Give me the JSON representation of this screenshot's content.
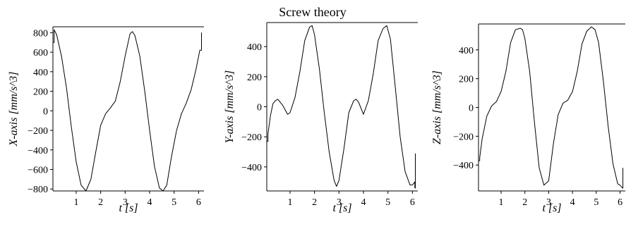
{
  "figure_title": "Screw theory",
  "chart_data": [
    {
      "type": "line",
      "xlabel": "t [s]",
      "ylabel": "X-axis [mm/s^3]",
      "xlim": [
        0.05,
        6.22
      ],
      "ylim": [
        -820,
        860
      ],
      "xticks": [
        1,
        2,
        3,
        4,
        5,
        6
      ],
      "yticks": [
        -800,
        -600,
        -400,
        -200,
        0,
        200,
        400,
        600,
        800
      ],
      "series": [
        {
          "x": [
            0.05,
            0.1,
            0.1,
            0.2,
            0.4,
            0.6,
            0.8,
            1.0,
            1.2,
            1.4,
            1.6,
            1.8,
            2.0,
            2.2,
            2.4,
            2.6,
            2.8,
            3.0,
            3.2,
            3.3,
            3.4,
            3.6,
            3.8,
            4.0,
            4.2,
            4.4,
            4.55,
            4.7,
            4.9,
            5.1,
            5.3,
            5.5,
            5.7,
            5.9,
            6.05,
            6.12,
            6.12
          ],
          "y": [
            700,
            700,
            830,
            780,
            560,
            240,
            -160,
            -520,
            -760,
            -820,
            -700,
            -420,
            -150,
            -30,
            30,
            100,
            300,
            560,
            790,
            810,
            770,
            560,
            200,
            -200,
            -570,
            -790,
            -820,
            -760,
            -460,
            -200,
            -30,
            80,
            220,
            430,
            620,
            620,
            800
          ]
        }
      ]
    },
    {
      "type": "line",
      "xlabel": "t [s]",
      "ylabel": "Y-axis [mm/s^3]",
      "xlim": [
        0.05,
        6.22
      ],
      "ylim": [
        -560,
        560
      ],
      "xticks": [
        1,
        2,
        3,
        4,
        5,
        6
      ],
      "yticks": [
        -400,
        -200,
        0,
        200,
        400
      ],
      "series": [
        {
          "x": [
            0.05,
            0.05,
            0.1,
            0.1,
            0.2,
            0.3,
            0.4,
            0.5,
            0.7,
            0.9,
            1.0,
            1.2,
            1.4,
            1.6,
            1.8,
            1.9,
            2.0,
            2.2,
            2.4,
            2.6,
            2.8,
            2.9,
            3.0,
            3.2,
            3.4,
            3.6,
            3.7,
            3.8,
            4.0,
            4.2,
            4.4,
            4.6,
            4.8,
            4.95,
            5.1,
            5.3,
            5.5,
            5.7,
            5.9,
            6.0,
            6.1,
            6.1,
            6.12,
            6.12
          ],
          "y": [
            -480,
            -230,
            -230,
            -180,
            -60,
            20,
            40,
            50,
            10,
            -50,
            -40,
            60,
            230,
            440,
            530,
            540,
            480,
            250,
            -40,
            -300,
            -490,
            -530,
            -490,
            -280,
            -40,
            40,
            50,
            30,
            -50,
            40,
            220,
            440,
            520,
            540,
            450,
            130,
            -200,
            -430,
            -520,
            -520,
            -500,
            -540,
            -540,
            -310
          ]
        }
      ]
    },
    {
      "type": "line",
      "xlabel": "t [s]",
      "ylabel": "Z-axis [mm/s^3]",
      "xlim": [
        0.05,
        6.22
      ],
      "ylim": [
        -580,
        580
      ],
      "xticks": [
        1,
        2,
        3,
        4,
        5,
        6
      ],
      "yticks": [
        -400,
        -200,
        0,
        200,
        400
      ],
      "series": [
        {
          "x": [
            0.05,
            0.05,
            0.1,
            0.1,
            0.2,
            0.4,
            0.6,
            0.8,
            1.0,
            1.2,
            1.4,
            1.6,
            1.8,
            1.9,
            2.0,
            2.2,
            2.4,
            2.6,
            2.8,
            3.0,
            3.2,
            3.4,
            3.6,
            3.8,
            4.0,
            4.2,
            4.4,
            4.6,
            4.8,
            4.95,
            5.1,
            5.3,
            5.5,
            5.7,
            5.9,
            6.0,
            6.1,
            6.12,
            6.12
          ],
          "y": [
            -530,
            -370,
            -370,
            -350,
            -220,
            -60,
            10,
            40,
            110,
            250,
            450,
            540,
            550,
            540,
            480,
            250,
            -100,
            -420,
            -540,
            -510,
            -250,
            -50,
            30,
            50,
            110,
            250,
            440,
            530,
            560,
            540,
            450,
            180,
            -130,
            -390,
            -530,
            -540,
            -560,
            -560,
            -420
          ]
        }
      ]
    }
  ]
}
